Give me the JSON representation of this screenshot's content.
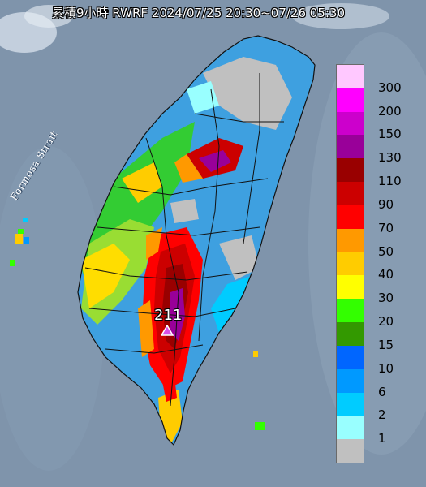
{
  "title": "累積9小時 RWRF 2024/07/25 20:30~07/26 05:30",
  "strait_label": "Formosa Strait",
  "max_marker": {
    "value": "211",
    "icon": "triangle-icon",
    "color": "#d94fe8"
  },
  "colors": {
    "sea": "#7f94ab",
    "land_base": "#3ea0e0",
    "boundary": "#111111"
  },
  "legend": [
    {
      "label": "300",
      "color": "#ffc8ff"
    },
    {
      "label": "200",
      "color": "#ff00ff"
    },
    {
      "label": "150",
      "color": "#cc00cc"
    },
    {
      "label": "130",
      "color": "#990099"
    },
    {
      "label": "110",
      "color": "#990000"
    },
    {
      "label": "90",
      "color": "#cc0000"
    },
    {
      "label": "70",
      "color": "#ff0000"
    },
    {
      "label": "50",
      "color": "#ff9900"
    },
    {
      "label": "40",
      "color": "#ffcc00"
    },
    {
      "label": "30",
      "color": "#ffff00"
    },
    {
      "label": "20",
      "color": "#33ff00"
    },
    {
      "label": "15",
      "color": "#339900"
    },
    {
      "label": "10",
      "color": "#0066ff"
    },
    {
      "label": "6",
      "color": "#0099ff"
    },
    {
      "label": "2",
      "color": "#00ccff"
    },
    {
      "label": "1",
      "color": "#99ffff"
    },
    {
      "label": "",
      "color": "#c0c0c0"
    }
  ]
}
